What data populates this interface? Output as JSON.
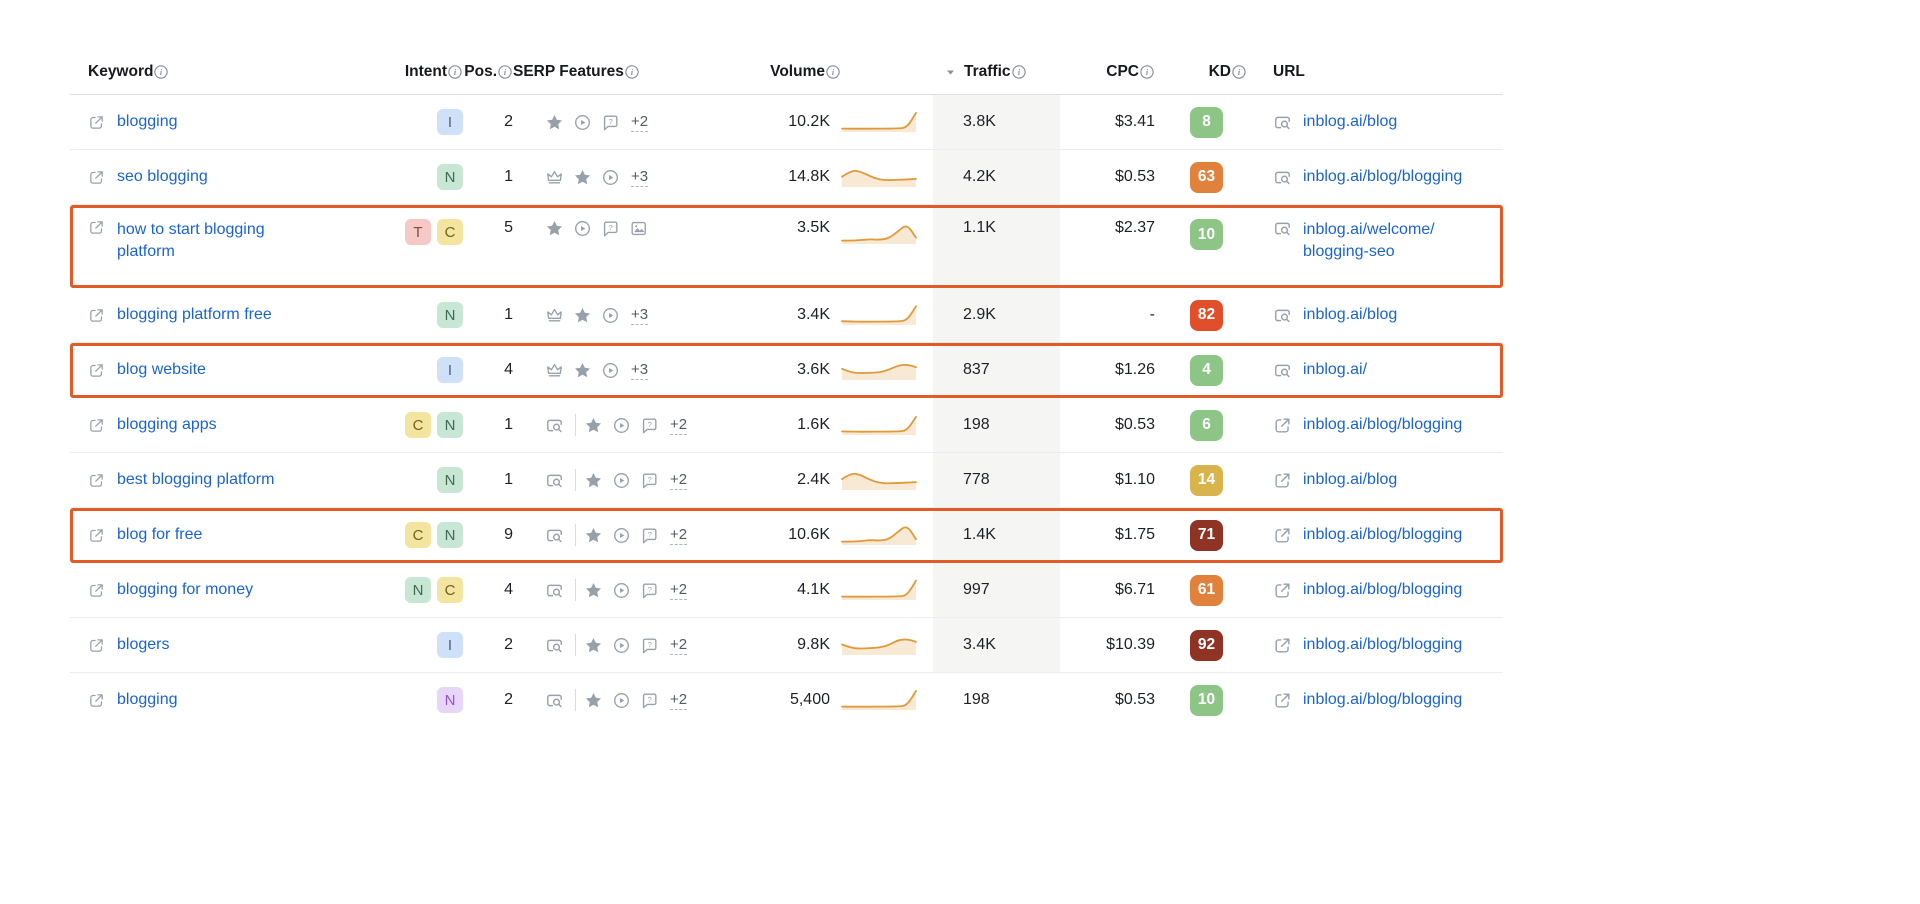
{
  "table": {
    "columns": [
      {
        "key": "keyword",
        "label": "Keyword",
        "info": true
      },
      {
        "key": "intent",
        "label": "Intent",
        "info": true
      },
      {
        "key": "pos",
        "label": "Pos.",
        "info": true
      },
      {
        "key": "serp",
        "label": "SERP Features",
        "info": true
      },
      {
        "key": "volume",
        "label": "Volume",
        "info": true
      },
      {
        "key": "traffic",
        "label": "Traffic",
        "info": true,
        "sorted": "desc"
      },
      {
        "key": "cpc",
        "label": "CPC",
        "info": true
      },
      {
        "key": "kd",
        "label": "KD",
        "info": true
      },
      {
        "key": "url",
        "label": "URL",
        "info": false
      }
    ],
    "rows": [
      {
        "keyword": "blogging",
        "intent": [
          {
            "label": "I",
            "type": "i"
          }
        ],
        "pos": "2",
        "serp": {
          "lead": null,
          "icons": [
            "star",
            "play",
            "question-bubble"
          ],
          "extra": "+2"
        },
        "volume": "10.2K",
        "trend": [
          10,
          9,
          9,
          9,
          10,
          10,
          11,
          14,
          90
        ],
        "traffic": "3.8K",
        "traffic_shaded": true,
        "cpc": "$3.41",
        "kd": {
          "value": "8",
          "level": "green"
        },
        "url": {
          "icon": "page-search",
          "lines": [
            "inblog.ai/blog"
          ]
        },
        "highlighted": false,
        "tall": false
      },
      {
        "keyword": "seo blogging",
        "intent": [
          {
            "label": "N",
            "type": "n"
          }
        ],
        "pos": "1",
        "serp": {
          "lead": null,
          "icons": [
            "crown",
            "star",
            "play"
          ],
          "extra": "+3"
        },
        "volume": "14.8K",
        "trend": [
          45,
          78,
          72,
          48,
          30,
          27,
          29,
          31,
          34
        ],
        "traffic": "4.2K",
        "traffic_shaded": true,
        "cpc": "$0.53",
        "kd": {
          "value": "63",
          "level": "orange"
        },
        "url": {
          "icon": "page-search",
          "lines": [
            "inblog.ai/blog/blogging"
          ]
        },
        "highlighted": false,
        "tall": false
      },
      {
        "keyword": "how to start blogging platform",
        "intent": [
          {
            "label": "T",
            "type": "t"
          },
          {
            "label": "C",
            "type": "c"
          }
        ],
        "pos": "5",
        "serp": {
          "lead": null,
          "icons": [
            "star",
            "play",
            "question-bubble",
            "image"
          ],
          "extra": null
        },
        "volume": "3.5K",
        "trend": [
          10,
          10,
          12,
          17,
          14,
          20,
          55,
          95,
          25
        ],
        "traffic": "1.1K",
        "traffic_shaded": true,
        "cpc": "$2.37",
        "kd": {
          "value": "10",
          "level": "green"
        },
        "url": {
          "icon": "page-search",
          "lines": [
            "inblog.ai/welcome/",
            "blogging-seo"
          ]
        },
        "highlighted": true,
        "tall": true
      },
      {
        "keyword": "blogging platform free",
        "intent": [
          {
            "label": "N",
            "type": "n"
          }
        ],
        "pos": "1",
        "serp": {
          "lead": null,
          "icons": [
            "crown",
            "star",
            "play"
          ],
          "extra": "+3"
        },
        "volume": "3.4K",
        "trend": [
          12,
          10,
          9,
          9,
          10,
          10,
          11,
          15,
          88
        ],
        "traffic": "2.9K",
        "traffic_shaded": true,
        "cpc": "-",
        "kd": {
          "value": "82",
          "level": "red"
        },
        "url": {
          "icon": "page-search",
          "lines": [
            "inblog.ai/blog"
          ]
        },
        "highlighted": false,
        "tall": false
      },
      {
        "keyword": "blog website",
        "intent": [
          {
            "label": "I",
            "type": "i"
          }
        ],
        "pos": "4",
        "serp": {
          "lead": null,
          "icons": [
            "crown",
            "star",
            "play"
          ],
          "extra": "+3"
        },
        "volume": "3.6K",
        "trend": [
          50,
          30,
          27,
          29,
          31,
          44,
          66,
          72,
          58
        ],
        "traffic": "837",
        "traffic_shaded": true,
        "cpc": "$1.26",
        "kd": {
          "value": "4",
          "level": "green"
        },
        "url": {
          "icon": "page-search",
          "lines": [
            "inblog.ai/"
          ]
        },
        "highlighted": true,
        "tall": false
      },
      {
        "keyword": "blogging apps",
        "intent": [
          {
            "label": "C",
            "type": "c"
          },
          {
            "label": "N",
            "type": "n"
          }
        ],
        "pos": "1",
        "serp": {
          "lead": "page-search",
          "icons": [
            "star",
            "play",
            "question-bubble"
          ],
          "extra": "+2"
        },
        "volume": "1.6K",
        "trend": [
          11,
          10,
          9,
          9,
          10,
          10,
          11,
          14,
          85
        ],
        "traffic": "198",
        "traffic_shaded": true,
        "cpc": "$0.53",
        "kd": {
          "value": "6",
          "level": "green"
        },
        "url": {
          "icon": "external-link",
          "lines": [
            "inblog.ai/blog/blogging"
          ]
        },
        "highlighted": false,
        "tall": false
      },
      {
        "keyword": "best blogging platform",
        "intent": [
          {
            "label": "N",
            "type": "n"
          }
        ],
        "pos": "1",
        "serp": {
          "lead": "page-search",
          "icons": [
            "star",
            "play",
            "question-bubble"
          ],
          "extra": "+2"
        },
        "volume": "2.4K",
        "trend": [
          48,
          80,
          70,
          45,
          29,
          26,
          28,
          30,
          33
        ],
        "traffic": "778",
        "traffic_shaded": true,
        "cpc": "$1.10",
        "kd": {
          "value": "14",
          "level": "yellow"
        },
        "url": {
          "icon": "external-link",
          "lines": [
            "inblog.ai/blog"
          ]
        },
        "highlighted": false,
        "tall": false
      },
      {
        "keyword": "blog for free",
        "intent": [
          {
            "label": "C",
            "type": "c"
          },
          {
            "label": "N",
            "type": "n"
          }
        ],
        "pos": "9",
        "serp": {
          "lead": "page-search",
          "icons": [
            "star",
            "play",
            "question-bubble"
          ],
          "extra": "+2"
        },
        "volume": "10.6K",
        "trend": [
          10,
          10,
          12,
          18,
          15,
          20,
          58,
          95,
          22
        ],
        "traffic": "1.4K",
        "traffic_shaded": true,
        "cpc": "$1.75",
        "kd": {
          "value": "71",
          "level": "darkred"
        },
        "url": {
          "icon": "external-link",
          "lines": [
            "inblog.ai/blog/blogging"
          ]
        },
        "highlighted": true,
        "tall": false
      },
      {
        "keyword": "blogging for money",
        "intent": [
          {
            "label": "N",
            "type": "n"
          },
          {
            "label": "C",
            "type": "c"
          }
        ],
        "pos": "4",
        "serp": {
          "lead": "page-search",
          "icons": [
            "star",
            "play",
            "question-bubble"
          ],
          "extra": "+2"
        },
        "volume": "4.1K",
        "trend": [
          10,
          9,
          9,
          9,
          10,
          10,
          11,
          14,
          92
        ],
        "traffic": "997",
        "traffic_shaded": true,
        "cpc": "$6.71",
        "kd": {
          "value": "61",
          "level": "orange"
        },
        "url": {
          "icon": "external-link",
          "lines": [
            "inblog.ai/blog/blogging"
          ]
        },
        "highlighted": false,
        "tall": false
      },
      {
        "keyword": "blogers",
        "intent": [
          {
            "label": "I",
            "type": "i"
          }
        ],
        "pos": "2",
        "serp": {
          "lead": "page-search",
          "icons": [
            "star",
            "play",
            "question-bubble"
          ],
          "extra": "+2"
        },
        "volume": "9.8K",
        "trend": [
          46,
          28,
          25,
          27,
          30,
          42,
          68,
          74,
          60
        ],
        "traffic": "3.4K",
        "traffic_shaded": true,
        "cpc": "$10.39",
        "kd": {
          "value": "92",
          "level": "darkred"
        },
        "url": {
          "icon": "external-link",
          "lines": [
            "inblog.ai/blog/blogging"
          ]
        },
        "highlighted": false,
        "tall": false
      },
      {
        "keyword": "blogging",
        "intent": [
          {
            "label": "N",
            "type": "np"
          }
        ],
        "pos": "2",
        "serp": {
          "lead": "page-search",
          "icons": [
            "star",
            "play",
            "question-bubble"
          ],
          "extra": "+2"
        },
        "volume": "5,400",
        "trend": [
          10,
          9,
          9,
          9,
          10,
          10,
          11,
          14,
          90
        ],
        "traffic": "198",
        "traffic_shaded": false,
        "cpc": "$0.53",
        "kd": {
          "value": "10",
          "level": "green"
        },
        "url": {
          "icon": "external-link",
          "lines": [
            "inblog.ai/blog/blogging"
          ]
        },
        "highlighted": false,
        "tall": false
      }
    ]
  },
  "colors": {
    "link": "#1b63cf",
    "highlight": "#e05b26",
    "traffic_band": "#f5f5f4",
    "kd_green": "#8cc585",
    "kd_yellow": "#d9b34c",
    "kd_orange": "#e0813c",
    "kd_red": "#e14e2b",
    "kd_darkred": "#8f3325",
    "sparkline": "#e0993b"
  },
  "chart_data": {
    "type": "line",
    "note": "volume trend sparklines per keyword row, normalized 0-100",
    "series_key": "table.rows[].trend"
  }
}
